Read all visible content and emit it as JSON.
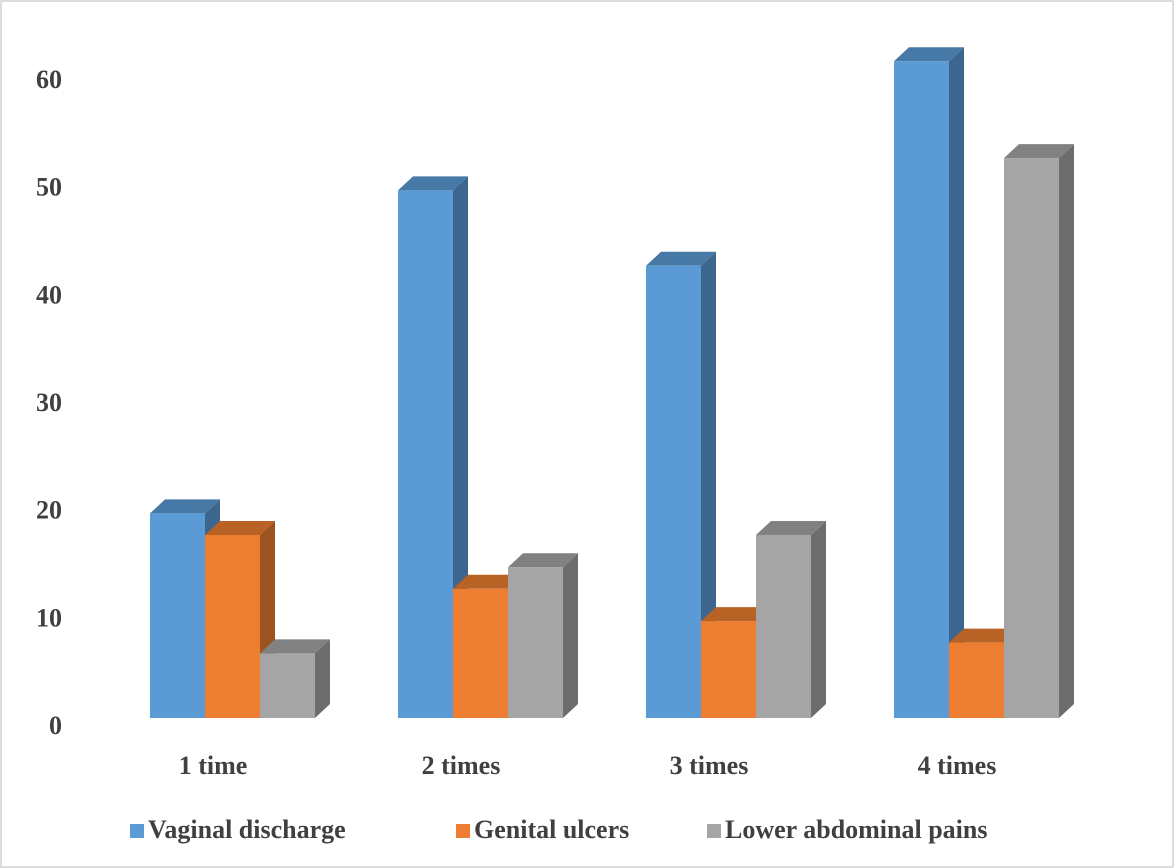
{
  "chart_data": {
    "type": "bar3d",
    "categories": [
      "1 time",
      "2 times",
      "3 times",
      "4 times"
    ],
    "series": [
      {
        "name": "Vaginal discharge",
        "color": "#5b9bd5",
        "values": [
          19,
          49,
          42,
          61
        ]
      },
      {
        "name": "Genital ulcers",
        "color": "#ed7d31",
        "values": [
          17,
          12,
          9,
          7
        ]
      },
      {
        "name": "Lower abdominal pains",
        "color": "#a5a5a5",
        "values": [
          6,
          14,
          17,
          52
        ]
      }
    ],
    "ylim": [
      0,
      60
    ],
    "yticks": [
      0,
      10,
      20,
      30,
      40,
      50,
      60
    ],
    "legend": "bottom"
  }
}
